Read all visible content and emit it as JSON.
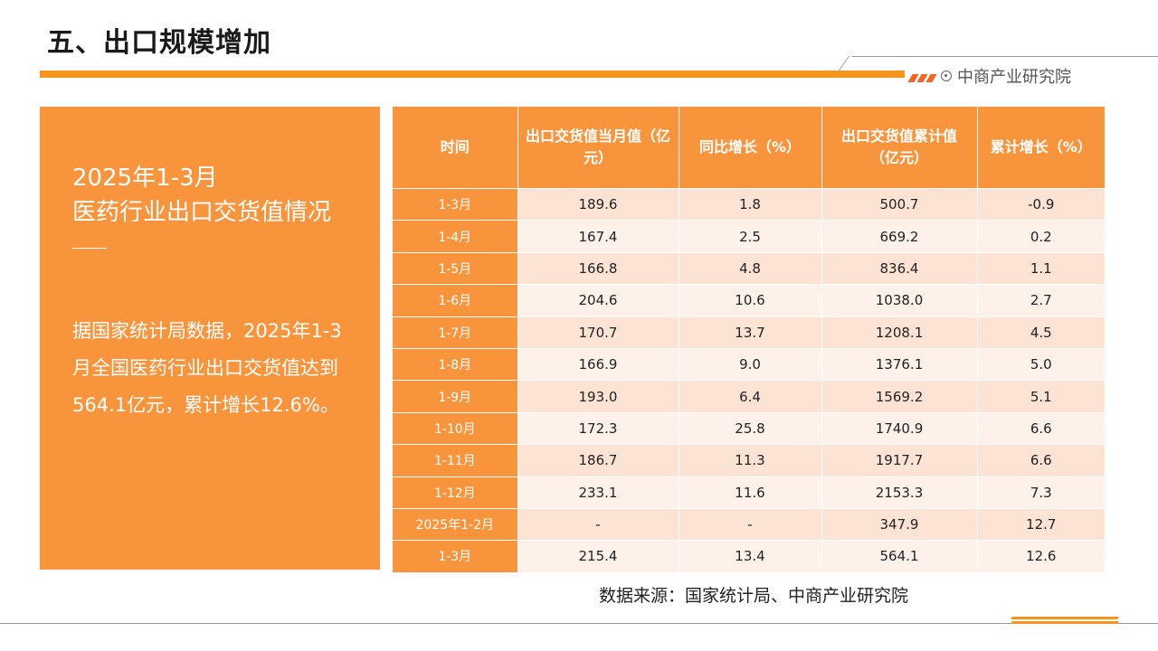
{
  "header": {
    "title": "五、出口规模增加",
    "brand": "中商产业研究院"
  },
  "left_panel": {
    "heading_line1": "2025年1-3月",
    "heading_line2": "医药行业出口交货值情况",
    "body": "据国家统计局数据，2025年1-3月全国医药行业出口交货值达到564.1亿元，累计增长12.6%。"
  },
  "table": {
    "headers": [
      "时间",
      "出口交货值当月值（亿元）",
      "同比增长（%）",
      "出口交货值累计值（亿元）",
      "累计增长（%）"
    ],
    "rows": [
      {
        "time": "1-3月",
        "monthly": "189.6",
        "yoy": "1.8",
        "cumulative": "500.7",
        "cum_growth": "-0.9"
      },
      {
        "time": "1-4月",
        "monthly": "167.4",
        "yoy": "2.5",
        "cumulative": "669.2",
        "cum_growth": "0.2"
      },
      {
        "time": "1-5月",
        "monthly": "166.8",
        "yoy": "4.8",
        "cumulative": "836.4",
        "cum_growth": "1.1"
      },
      {
        "time": "1-6月",
        "monthly": "204.6",
        "yoy": "10.6",
        "cumulative": "1038.0",
        "cum_growth": "2.7"
      },
      {
        "time": "1-7月",
        "monthly": "170.7",
        "yoy": "13.7",
        "cumulative": "1208.1",
        "cum_growth": "4.5"
      },
      {
        "time": "1-8月",
        "monthly": "166.9",
        "yoy": "9.0",
        "cumulative": "1376.1",
        "cum_growth": "5.0"
      },
      {
        "time": "1-9月",
        "monthly": "193.0",
        "yoy": "6.4",
        "cumulative": "1569.2",
        "cum_growth": "5.1"
      },
      {
        "time": "1-10月",
        "monthly": "172.3",
        "yoy": "25.8",
        "cumulative": "1740.9",
        "cum_growth": "6.6"
      },
      {
        "time": "1-11月",
        "monthly": "186.7",
        "yoy": "11.3",
        "cumulative": "1917.7",
        "cum_growth": "6.6"
      },
      {
        "time": "1-12月",
        "monthly": "233.1",
        "yoy": "11.6",
        "cumulative": "2153.3",
        "cum_growth": "7.3"
      },
      {
        "time": "2025年1-2月",
        "monthly": "-",
        "yoy": "-",
        "cumulative": "347.9",
        "cum_growth": "12.7"
      },
      {
        "time": "1-3月",
        "monthly": "215.4",
        "yoy": "13.4",
        "cumulative": "564.1",
        "cum_growth": "12.6"
      }
    ]
  },
  "source": "数据来源：国家统计局、中商产业研究院",
  "colors": {
    "accent": "#f7943c",
    "row_dark": "#fde3d3",
    "row_light": "#fef1ea"
  }
}
